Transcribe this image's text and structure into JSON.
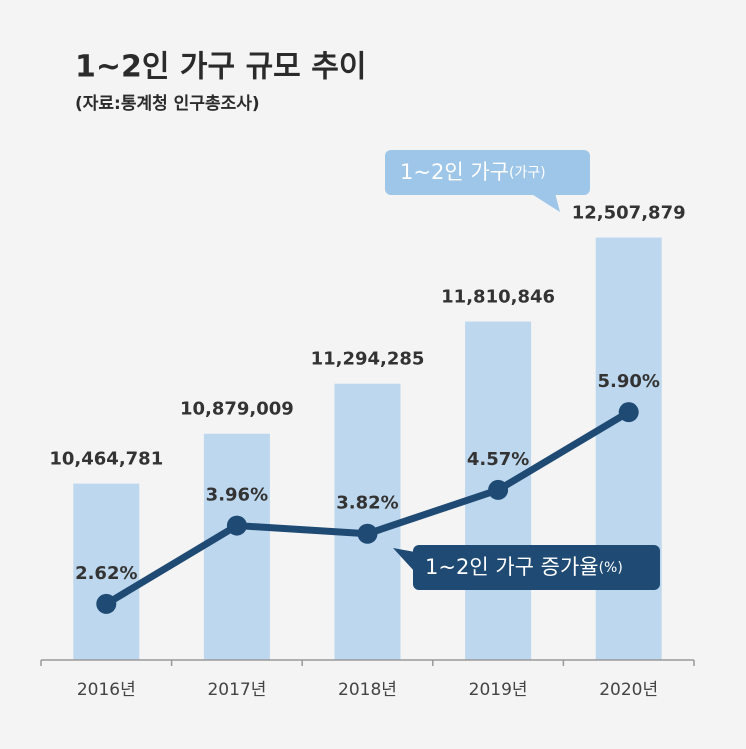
{
  "chart_data": {
    "type": "bar+line",
    "title": "1~2인 가구 규모 추이",
    "subtitle": "(자료:통계청 인구총조사)",
    "categories": [
      "2016년",
      "2017년",
      "2018년",
      "2019년",
      "2020년"
    ],
    "series": [
      {
        "name": "1~2인 가구",
        "unit": "(가구)",
        "type": "bar",
        "color": "#bdd7ee",
        "values": [
          10464781,
          10879009,
          11294285,
          11810846,
          12507879
        ],
        "value_labels": [
          "10,464,781",
          "10,879,009",
          "11,294,285",
          "11,810,846",
          "12,507,879"
        ]
      },
      {
        "name": "1~2인 가구 증가율",
        "unit": "(%)",
        "type": "line",
        "axis": "y2",
        "color": "#1f4a73",
        "values": [
          2.62,
          3.96,
          3.82,
          4.57,
          5.9
        ],
        "value_labels": [
          "2.62%",
          "3.96%",
          "3.82%",
          "4.57%",
          "5.90%"
        ]
      }
    ],
    "ylim": [
      9000000,
      12820000
    ],
    "y2lim": [
      1.66,
      9.53
    ],
    "legend_colors": [
      "#9ec6e8",
      "#1f4a73"
    ]
  }
}
